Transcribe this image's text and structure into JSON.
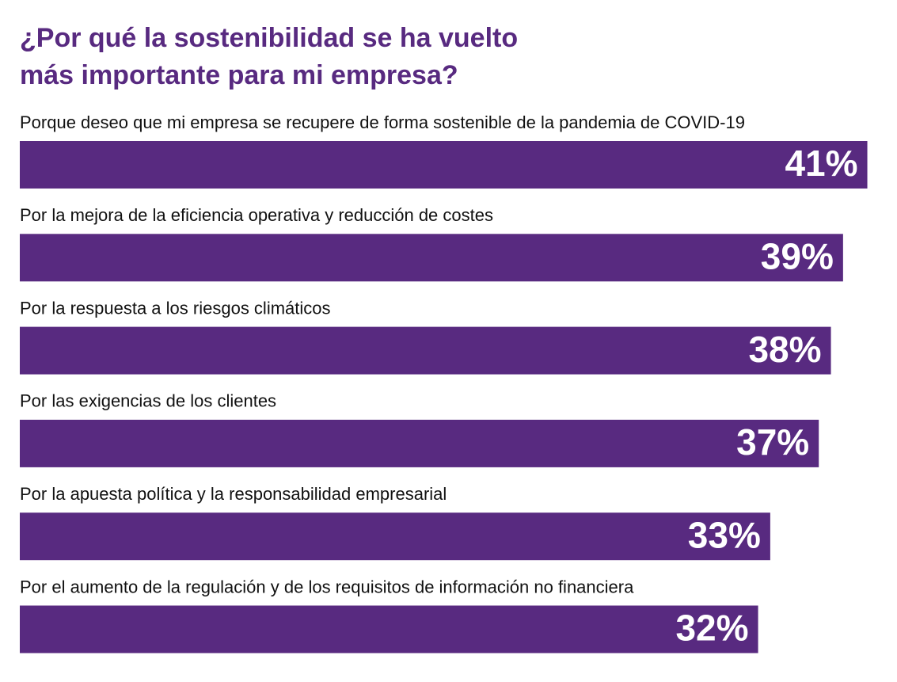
{
  "chart_data": {
    "type": "bar",
    "orientation": "horizontal",
    "title": [
      "¿Por qué la sostenibilidad se ha vuelto",
      "más importante para mi empresa?"
    ],
    "categories": [
      "Porque deseo que mi empresa se recupere de forma sostenible de la pandemia de COVID-19",
      "Por la mejora de la eficiencia operativa y reducción de costes",
      "Por la respuesta a los riesgos climáticos",
      "Por las exigencias de los clientes",
      "Por la apuesta política y la responsabilidad empresarial",
      "Por el aumento de la regulación y de los requisitos de información no financiera"
    ],
    "values": [
      41,
      39,
      38,
      37,
      33,
      32
    ],
    "value_labels": [
      "41%",
      "39%",
      "38%",
      "37%",
      "33%",
      "32%"
    ],
    "color": "#582a80"
  }
}
